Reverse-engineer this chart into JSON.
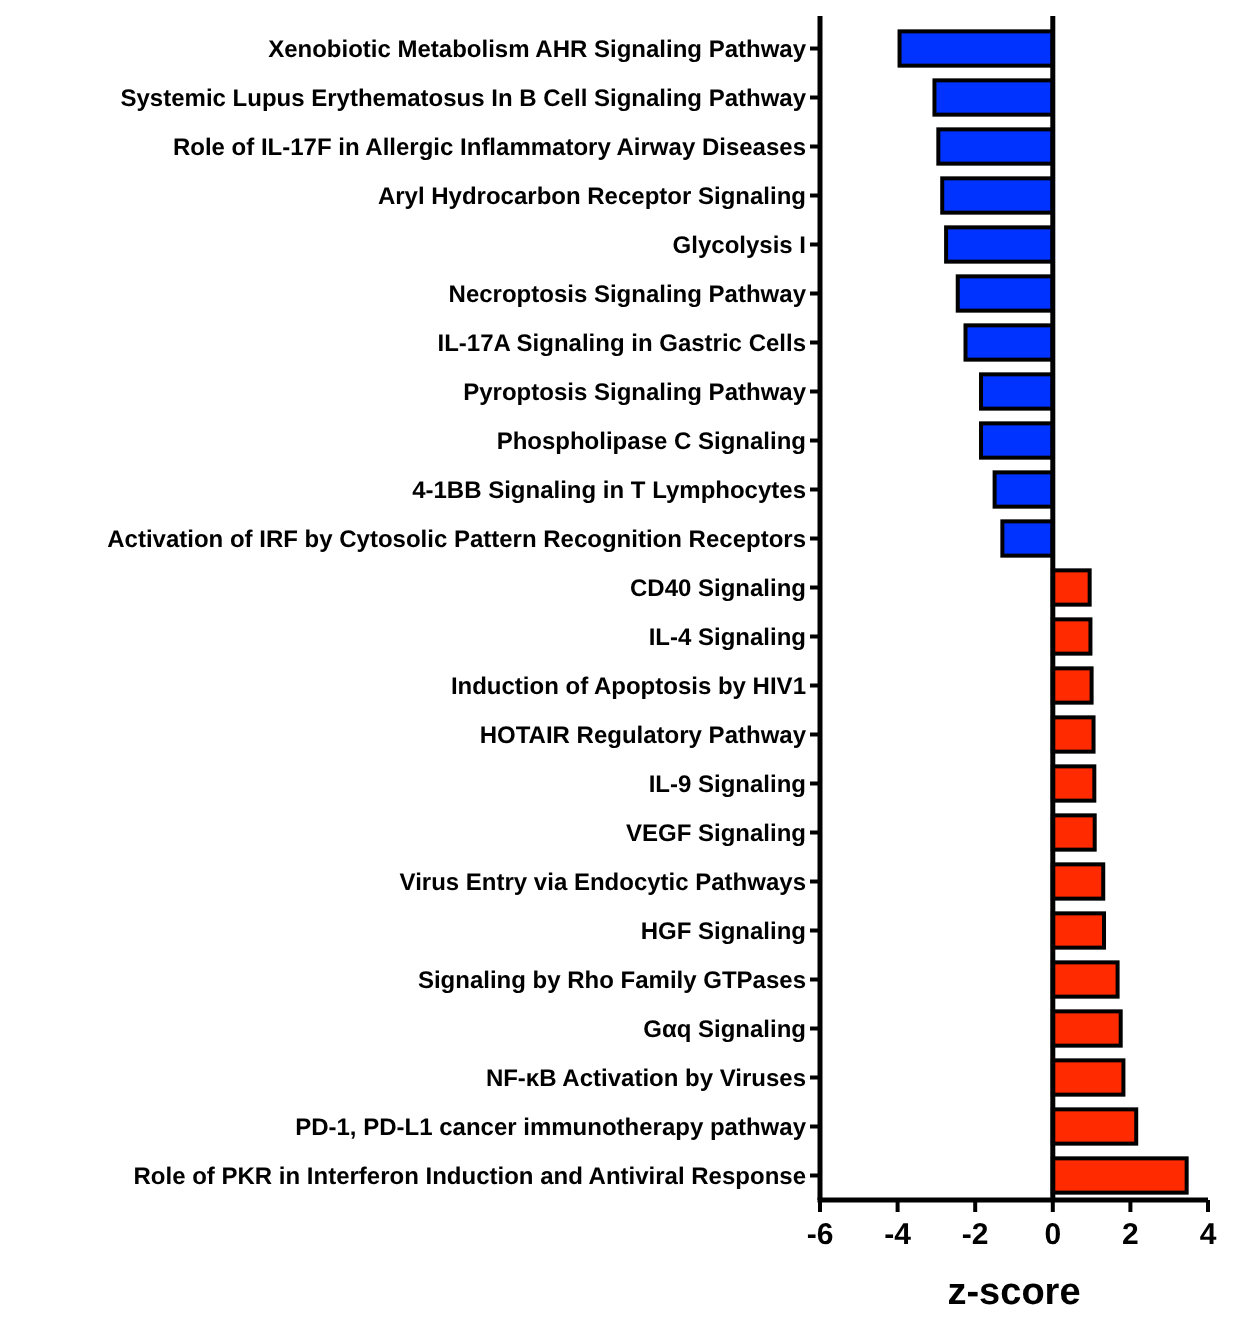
{
  "chart_data": {
    "type": "bar",
    "orientation": "horizontal",
    "xlabel": "z-score",
    "categories": [
      "Xenobiotic Metabolism AHR Signaling Pathway",
      "Systemic Lupus Erythematosus In B Cell Signaling Pathway",
      "Role of IL-17F in Allergic Inflammatory Airway Diseases",
      "Aryl Hydrocarbon Receptor Signaling",
      "Glycolysis I",
      "Necroptosis Signaling Pathway",
      "IL-17A Signaling in Gastric Cells",
      "Pyroptosis Signaling Pathway",
      "Phospholipase C Signaling",
      "4-1BB Signaling in T Lymphocytes",
      "Activation of IRF by Cytosolic Pattern Recognition Receptors",
      "CD40 Signaling",
      "IL-4 Signaling",
      "Induction of Apoptosis by HIV1",
      "HOTAIR Regulatory Pathway",
      "IL-9 Signaling",
      "VEGF Signaling",
      "Virus Entry via Endocytic Pathways",
      "HGF Signaling",
      "Signaling by Rho Family GTPases",
      "Gαq Signaling",
      "NF-κB Activation by Viruses",
      "PD-1, PD-L1 cancer immunotherapy pathway",
      "Role of PKR in Interferon Induction and Antiviral Response"
    ],
    "values": [
      -3.95,
      -3.05,
      -2.95,
      -2.85,
      -2.75,
      -2.45,
      -2.25,
      -1.85,
      -1.85,
      -1.5,
      -1.3,
      0.95,
      0.97,
      1.0,
      1.05,
      1.07,
      1.08,
      1.3,
      1.32,
      1.67,
      1.75,
      1.82,
      2.15,
      3.45
    ],
    "colors": [
      "#0033ff",
      "#0033ff",
      "#0033ff",
      "#0033ff",
      "#0033ff",
      "#0033ff",
      "#0033ff",
      "#0033ff",
      "#0033ff",
      "#0033ff",
      "#0033ff",
      "#ff2a00",
      "#ff2a00",
      "#ff2a00",
      "#ff2a00",
      "#ff2a00",
      "#ff2a00",
      "#ff2a00",
      "#ff2a00",
      "#ff2a00",
      "#ff2a00",
      "#ff2a00",
      "#ff2a00",
      "#ff2a00"
    ],
    "xlim": [
      -6,
      4
    ],
    "xticks": [
      -6,
      -4,
      -2,
      0,
      2,
      4
    ]
  }
}
